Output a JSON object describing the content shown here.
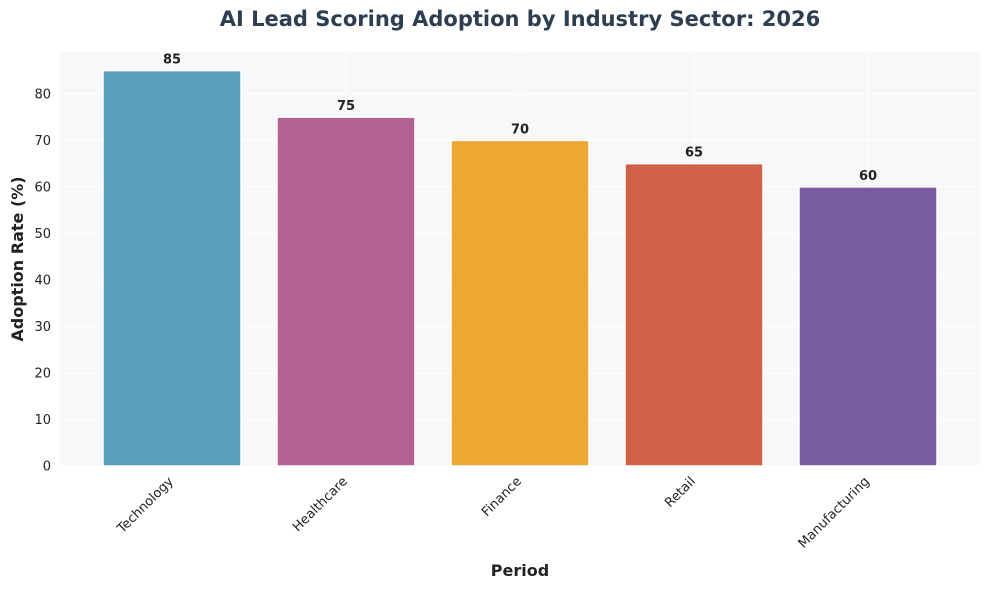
{
  "chart_data": {
    "type": "bar",
    "title": "AI Lead Scoring Adoption by Industry Sector: 2026",
    "xlabel": "Period",
    "ylabel": "Adoption Rate (%)",
    "categories": [
      "Technology",
      "Healthcare",
      "Finance",
      "Retail",
      "Manufacturing"
    ],
    "values": [
      85,
      75,
      70,
      65,
      60
    ],
    "value_labels": [
      "85",
      "75",
      "70",
      "65",
      "60"
    ],
    "colors": [
      "#4a98b6",
      "#aa5589",
      "#eea023",
      "#cc5436",
      "#6e4e97"
    ],
    "ylim": [
      0,
      89
    ],
    "yticks": [
      0,
      10,
      20,
      30,
      40,
      50,
      60,
      70,
      80
    ],
    "ytick_labels": [
      "0",
      "10",
      "20",
      "30",
      "40",
      "50",
      "60",
      "70",
      "80"
    ],
    "grid": true,
    "plot_background": "#f6f8fa"
  }
}
